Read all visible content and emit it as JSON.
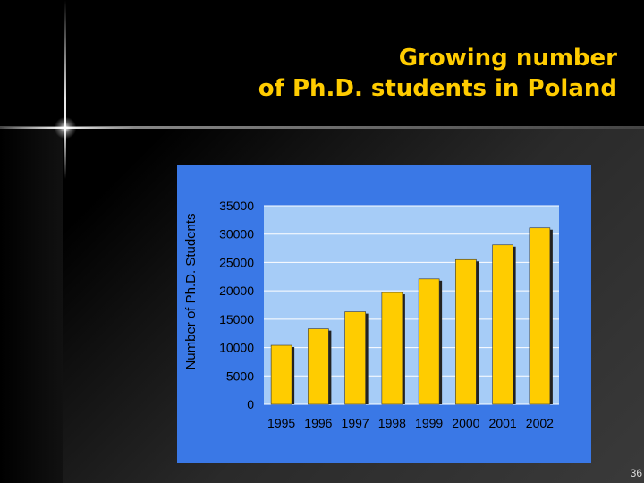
{
  "slide": {
    "title_line1": "Growing number",
    "title_line2": "of Ph.D. students in Poland",
    "page_number": "36"
  },
  "colors": {
    "panel": "#3a78e6",
    "plot_area": "#a6ccf7",
    "bar": "#ffcc00",
    "title": "#ffcc00"
  },
  "chart_data": {
    "type": "bar",
    "categories": [
      "1995",
      "1996",
      "1997",
      "1998",
      "1999",
      "2000",
      "2001",
      "2002"
    ],
    "values": [
      10400,
      13300,
      16300,
      19700,
      22100,
      25500,
      28100,
      31100
    ],
    "title": "",
    "xlabel": "",
    "ylabel": "Number of Ph.D. Students",
    "ylim": [
      0,
      35000
    ],
    "yticks": [
      0,
      5000,
      10000,
      15000,
      20000,
      25000,
      30000,
      35000
    ],
    "grid": true,
    "legend": "none"
  }
}
